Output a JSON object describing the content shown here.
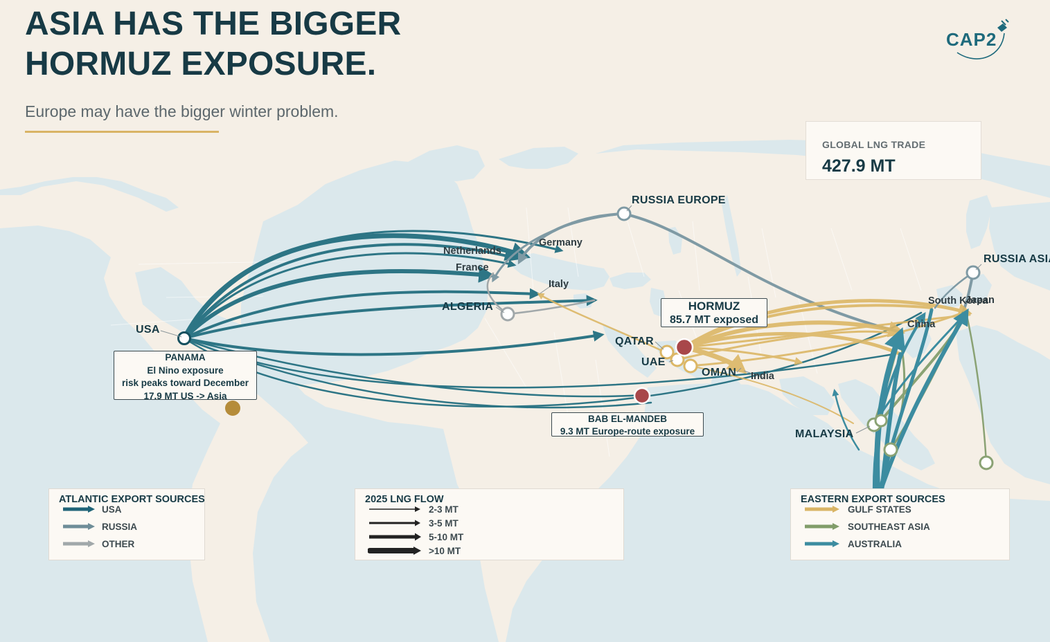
{
  "header": {
    "title_line1": "ASIA HAS THE BIGGER",
    "title_line2": "HORMUZ EXPOSURE.",
    "subtitle": "Europe may have the bigger winter problem.",
    "logo_text": "CAP2"
  },
  "kpi": {
    "label": "GLOBAL LNG TRADE",
    "value": "427.9 MT"
  },
  "callouts": {
    "hormuz": {
      "title": "HORMUZ",
      "detail": "85.7 MT exposed"
    },
    "panama": {
      "title": "PANAMA",
      "line1": "El Nino exposure",
      "line2": "risk peaks toward December",
      "line3": "17.9 MT US -> Asia"
    },
    "bab": {
      "title": "BAB EL-MANDEB",
      "detail": "9.3 MT Europe-route exposure"
    }
  },
  "labels": {
    "sources": {
      "usa": "USA",
      "russia_europe": "RUSSIA EUROPE",
      "russia_asia": "RUSSIA ASIA",
      "algeria": "ALGERIA",
      "qatar": "QATAR",
      "uae": "UAE",
      "oman": "OMAN",
      "malaysia": "MALAYSIA"
    },
    "destinations": {
      "netherlands": "Netherlands",
      "germany": "Germany",
      "france": "France",
      "italy": "Italy",
      "south_korea": "South Korea",
      "japan": "Japan",
      "china": "China",
      "india": "India"
    }
  },
  "legends": {
    "atlantic": {
      "title": "ATLANTIC EXPORT SOURCES",
      "items": [
        {
          "label": "USA",
          "color": "#1f6478"
        },
        {
          "label": "RUSSIA",
          "color": "#6e8d98"
        },
        {
          "label": "OTHER",
          "color": "#a1a8aa"
        }
      ]
    },
    "flow": {
      "title": "2025 LNG FLOW",
      "items": [
        "2-3 MT",
        "3-5 MT",
        "5-10 MT",
        ">10 MT"
      ]
    },
    "eastern": {
      "title": "EASTERN EXPORT SOURCES",
      "items": [
        {
          "label": "GULF STATES",
          "color": "#d9b465"
        },
        {
          "label": "SOUTHEAST ASIA",
          "color": "#819d6a"
        },
        {
          "label": "AUSTRALIA",
          "color": "#3c8ca0"
        }
      ]
    }
  },
  "colors": {
    "usa": "#2d7585",
    "russia": "#7f9aa4",
    "gulf": "#dcb766",
    "sea": "#8aa274",
    "australia": "#3c8ca0",
    "chokepoint": "#a8474a",
    "panama_marker": "#b58c3a",
    "water": "#dbe8ec",
    "land": "#f5efe6"
  }
}
